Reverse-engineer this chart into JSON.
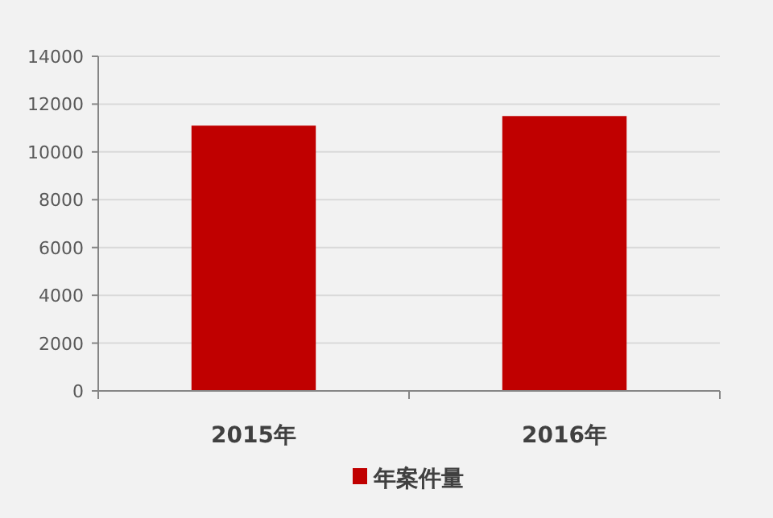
{
  "chart_data": {
    "type": "bar",
    "categories": [
      "2015年",
      "2016年"
    ],
    "series": [
      {
        "name": "年案件量",
        "color": "#c00000",
        "values": [
          11100,
          11500
        ]
      }
    ],
    "ylim": [
      0,
      14000
    ],
    "yticks": [
      0,
      2000,
      4000,
      6000,
      8000,
      10000,
      12000,
      14000
    ],
    "grid": "y",
    "legend": "bottom"
  }
}
